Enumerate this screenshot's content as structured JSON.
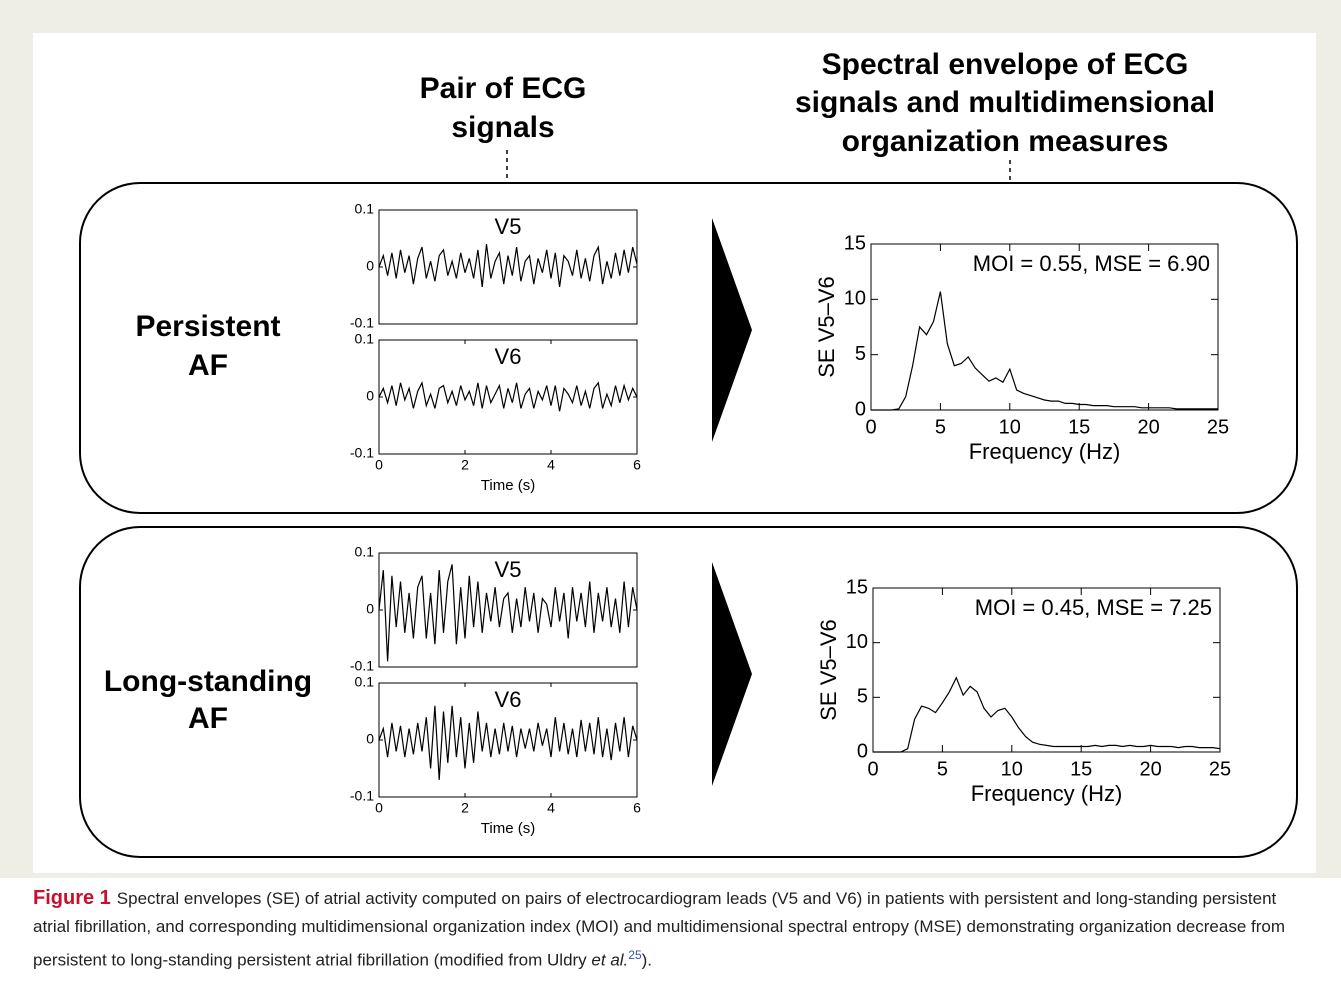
{
  "figure": {
    "left_header": [
      "Pair of ECG",
      "signals"
    ],
    "right_header": [
      "Spectral envelope of ECG",
      "signals and multidimensional",
      "organization measures"
    ],
    "rows": [
      {
        "label": [
          "Persistent",
          "AF"
        ]
      },
      {
        "label": [
          "Long-standing",
          "AF"
        ]
      }
    ]
  },
  "chart_data": [
    {
      "type": "line",
      "xlabel": "Time (s)",
      "xlim": [
        0,
        6
      ],
      "ylim": [
        -0.1,
        0.1
      ],
      "xticks": [
        0,
        2,
        4,
        6
      ],
      "yticks": [
        -0.1,
        0,
        0.1
      ],
      "color": "#000000",
      "x": [
        0,
        0.1,
        0.2,
        0.3,
        0.4,
        0.5,
        0.6,
        0.7,
        0.8,
        0.9,
        1,
        1.1,
        1.2,
        1.3,
        1.4,
        1.5,
        1.6,
        1.7,
        1.8,
        1.9,
        2,
        2.1,
        2.2,
        2.3,
        2.4,
        2.5,
        2.6,
        2.7,
        2.8,
        2.9,
        3,
        3.1,
        3.2,
        3.3,
        3.4,
        3.5,
        3.6,
        3.7,
        3.8,
        3.9,
        4,
        4.1,
        4.2,
        4.3,
        4.4,
        4.5,
        4.6,
        4.7,
        4.8,
        4.9,
        5,
        5.1,
        5.2,
        5.3,
        5.4,
        5.5,
        5.6,
        5.7,
        5.8,
        5.9,
        6
      ],
      "series": [
        {
          "name": "V5",
          "values": [
            0,
            0.02,
            -0.015,
            0.025,
            -0.02,
            0.03,
            -0.01,
            0.02,
            -0.03,
            0.015,
            0.035,
            -0.02,
            0.01,
            -0.025,
            0.02,
            0.03,
            -0.015,
            0.01,
            -0.02,
            0.025,
            -0.01,
            0.015,
            -0.02,
            0.03,
            -0.035,
            0.04,
            -0.02,
            0.01,
            0.025,
            -0.03,
            0.02,
            -0.015,
            0.035,
            -0.025,
            0.01,
            0.02,
            -0.03,
            0.015,
            -0.01,
            0.03,
            -0.02,
            0.025,
            -0.035,
            0.02,
            0.01,
            -0.015,
            0.03,
            -0.02,
            0.015,
            -0.025,
            0.02,
            0.035,
            -0.03,
            0.01,
            -0.02,
            0.025,
            -0.015,
            0.03,
            -0.01,
            0.035,
            0.005
          ]
        },
        {
          "name": "V6",
          "values": [
            0,
            0.015,
            -0.01,
            0.02,
            -0.015,
            0.025,
            -0.005,
            0.015,
            -0.02,
            0.01,
            0.025,
            -0.015,
            0.005,
            -0.02,
            0.015,
            0.02,
            -0.01,
            0.01,
            -0.015,
            0.02,
            -0.005,
            0.01,
            -0.015,
            0.025,
            -0.02,
            0.02,
            -0.01,
            0.005,
            0.02,
            -0.02,
            0.015,
            -0.01,
            0.025,
            -0.02,
            0.005,
            0.015,
            -0.02,
            0.01,
            -0.005,
            0.02,
            -0.015,
            0.02,
            -0.025,
            0.015,
            0.005,
            -0.01,
            0.02,
            -0.015,
            0.01,
            -0.02,
            0.015,
            0.025,
            -0.02,
            0.005,
            -0.015,
            0.02,
            -0.01,
            0.02,
            -0.005,
            0.015,
            0
          ]
        }
      ]
    },
    {
      "type": "line",
      "annotation": "MOI = 0.55, MSE = 6.90",
      "ylabel": "SE V5–V6",
      "xlabel": "Frequency (Hz)",
      "xlim": [
        0,
        25
      ],
      "ylim": [
        0,
        15
      ],
      "xticks": [
        0,
        5,
        10,
        15,
        20,
        25
      ],
      "yticks": [
        0,
        5,
        10,
        15
      ],
      "color": "#000000",
      "x": [
        0,
        0.5,
        1,
        1.5,
        2,
        2.5,
        3,
        3.5,
        4,
        4.5,
        5,
        5.5,
        6,
        6.5,
        7,
        7.5,
        8,
        8.5,
        9,
        9.5,
        10,
        10.5,
        11,
        11.5,
        12,
        12.5,
        13,
        13.5,
        14,
        14.5,
        15,
        15.5,
        16,
        16.5,
        17,
        17.5,
        18,
        18.5,
        19,
        19.5,
        20,
        20.5,
        21,
        21.5,
        22,
        22.5,
        23,
        23.5,
        24,
        24.5,
        25
      ],
      "values": [
        0,
        0,
        0,
        0,
        0.1,
        1.2,
        4,
        7.5,
        6.8,
        8,
        10.7,
        6,
        4,
        4.2,
        4.8,
        3.8,
        3.2,
        2.6,
        2.9,
        2.5,
        3.7,
        1.8,
        1.5,
        1.3,
        1.1,
        0.9,
        0.8,
        0.8,
        0.6,
        0.6,
        0.5,
        0.5,
        0.4,
        0.4,
        0.4,
        0.3,
        0.3,
        0.3,
        0.3,
        0.2,
        0.2,
        0.2,
        0.2,
        0.2,
        0.1,
        0.1,
        0.1,
        0.1,
        0.1,
        0.1,
        0.1
      ]
    },
    {
      "type": "line",
      "xlabel": "Time (s)",
      "xlim": [
        0,
        6
      ],
      "ylim": [
        -0.1,
        0.1
      ],
      "xticks": [
        0,
        2,
        4,
        6
      ],
      "yticks": [
        -0.1,
        0,
        0.1
      ],
      "color": "#000000",
      "x": [
        0,
        0.1,
        0.2,
        0.3,
        0.4,
        0.5,
        0.6,
        0.7,
        0.8,
        0.9,
        1,
        1.1,
        1.2,
        1.3,
        1.4,
        1.5,
        1.6,
        1.7,
        1.8,
        1.9,
        2,
        2.1,
        2.2,
        2.3,
        2.4,
        2.5,
        2.6,
        2.7,
        2.8,
        2.9,
        3,
        3.1,
        3.2,
        3.3,
        3.4,
        3.5,
        3.6,
        3.7,
        3.8,
        3.9,
        4,
        4.1,
        4.2,
        4.3,
        4.4,
        4.5,
        4.6,
        4.7,
        4.8,
        4.9,
        5,
        5.1,
        5.2,
        5.3,
        5.4,
        5.5,
        5.6,
        5.7,
        5.8,
        5.9,
        6
      ],
      "series": [
        {
          "name": "V5",
          "values": [
            0,
            0.07,
            -0.09,
            0.06,
            -0.03,
            0.05,
            -0.04,
            0.03,
            -0.05,
            0.04,
            0.06,
            -0.05,
            0.03,
            -0.06,
            0.07,
            -0.04,
            0.05,
            0.08,
            -0.06,
            0.04,
            -0.05,
            0.06,
            -0.03,
            0.05,
            -0.04,
            0.03,
            -0.02,
            0.04,
            -0.03,
            0.02,
            0.03,
            -0.04,
            0.02,
            -0.03,
            0.04,
            -0.02,
            0.03,
            -0.04,
            0.02,
            0.01,
            -0.03,
            0.04,
            -0.02,
            0.03,
            -0.05,
            0.04,
            -0.02,
            0.03,
            -0.03,
            0.05,
            -0.04,
            0.03,
            -0.02,
            0.04,
            -0.03,
            0.02,
            -0.04,
            0.05,
            -0.03,
            0.04,
            0
          ]
        },
        {
          "name": "V6",
          "values": [
            0,
            0.02,
            -0.03,
            0.03,
            -0.02,
            0.025,
            -0.03,
            0.02,
            -0.025,
            0.03,
            -0.02,
            0.04,
            -0.05,
            0.06,
            -0.07,
            0.05,
            -0.04,
            0.06,
            -0.03,
            0.04,
            -0.05,
            0.03,
            -0.04,
            0.05,
            -0.02,
            0.03,
            -0.03,
            0.02,
            -0.025,
            0.03,
            -0.02,
            0.025,
            -0.03,
            0.02,
            -0.015,
            0.02,
            -0.02,
            0.03,
            -0.01,
            0.02,
            -0.03,
            0.04,
            -0.02,
            0.03,
            -0.025,
            0.02,
            -0.03,
            0.035,
            -0.02,
            0.03,
            -0.025,
            0.04,
            -0.03,
            0.02,
            -0.035,
            0.03,
            -0.02,
            0.04,
            -0.03,
            0.025,
            0
          ]
        }
      ]
    },
    {
      "type": "line",
      "annotation": "MOI = 0.45, MSE = 7.25",
      "ylabel": "SE V5–V6",
      "xlabel": "Frequency (Hz)",
      "xlim": [
        0,
        25
      ],
      "ylim": [
        0,
        15
      ],
      "xticks": [
        0,
        5,
        10,
        15,
        20,
        25
      ],
      "yticks": [
        0,
        5,
        10,
        15
      ],
      "color": "#000000",
      "x": [
        0,
        0.5,
        1,
        1.5,
        2,
        2.5,
        3,
        3.5,
        4,
        4.5,
        5,
        5.5,
        6,
        6.5,
        7,
        7.5,
        8,
        8.5,
        9,
        9.5,
        10,
        10.5,
        11,
        11.5,
        12,
        12.5,
        13,
        13.5,
        14,
        14.5,
        15,
        15.5,
        16,
        16.5,
        17,
        17.5,
        18,
        18.5,
        19,
        19.5,
        20,
        20.5,
        21,
        21.5,
        22,
        22.5,
        23,
        23.5,
        24,
        24.5,
        25
      ],
      "values": [
        0,
        0,
        0,
        0,
        0,
        0.3,
        3,
        4.2,
        4,
        3.6,
        4.5,
        5.5,
        6.8,
        5.2,
        6,
        5.5,
        4,
        3.2,
        3.8,
        4,
        3.2,
        2.2,
        1.4,
        0.9,
        0.7,
        0.6,
        0.5,
        0.5,
        0.5,
        0.5,
        0.5,
        0.5,
        0.6,
        0.5,
        0.6,
        0.6,
        0.5,
        0.6,
        0.5,
        0.5,
        0.6,
        0.5,
        0.5,
        0.5,
        0.4,
        0.5,
        0.5,
        0.4,
        0.4,
        0.4,
        0.3
      ]
    }
  ],
  "caption": {
    "label": "Figure 1",
    "text": "Spectral envelopes (SE) of atrial activity computed on pairs of electrocardiogram leads (V5 and V6) in patients with persistent and long-standing persistent atrial fibrillation, and corresponding multidimensional organization index (MOI) and multidimensional spectral entropy (MSE) demonstrating organization decrease from persistent to long-standing persistent atrial fibrillation (modified from Uldry ",
    "italic": "et al.",
    "ref": "25",
    "end": ")."
  }
}
